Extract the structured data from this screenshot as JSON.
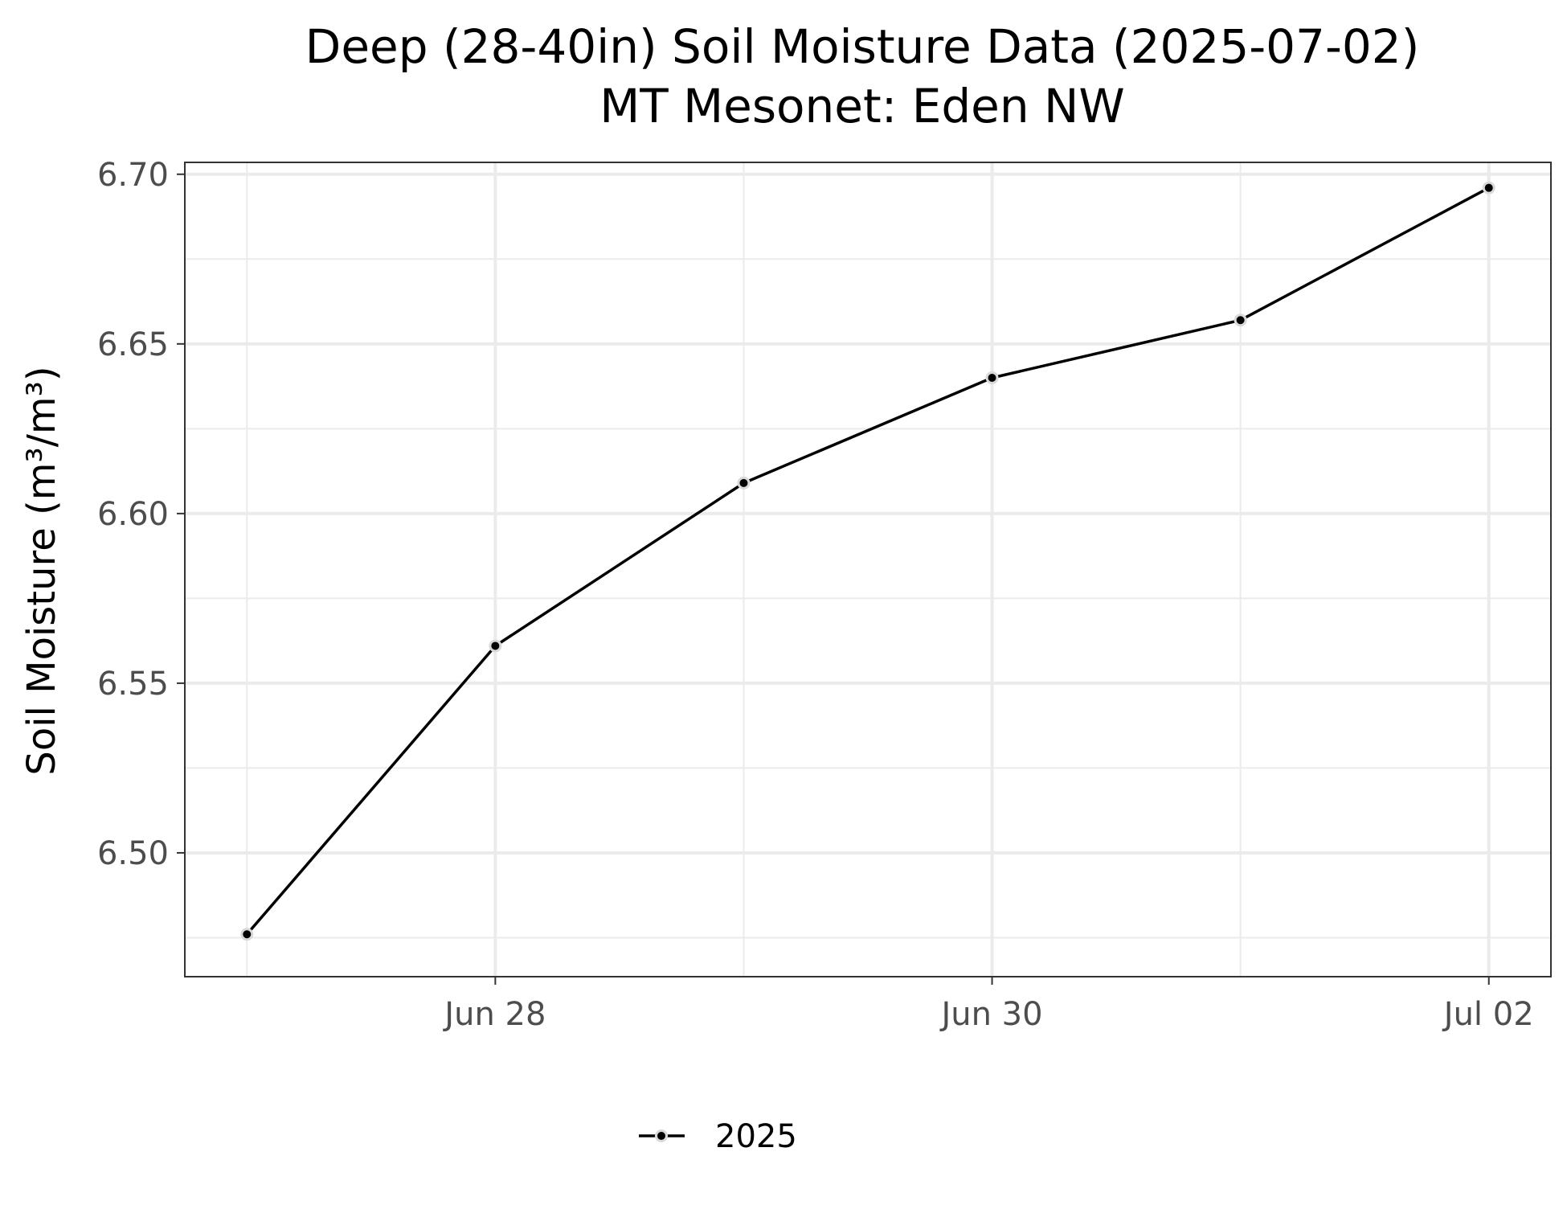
{
  "chart_data": {
    "type": "line",
    "title": "Deep (28-40in) Soil Moisture Data (2025-07-02)",
    "subtitle": "MT Mesonet: Eden NW",
    "xlabel": "",
    "ylabel": "Soil Moisture (m³/m³)",
    "x_ticks": [
      "Jun 28",
      "Jun 30",
      "Jul 02"
    ],
    "x_tick_dates": [
      "2025-06-28",
      "2025-06-30",
      "2025-07-02"
    ],
    "y_ticks": [
      "6.50",
      "6.55",
      "6.60",
      "6.65",
      "6.70"
    ],
    "x": [
      "2025-06-27",
      "2025-06-28",
      "2025-06-29",
      "2025-06-30",
      "2025-07-01",
      "2025-07-02"
    ],
    "series": [
      {
        "name": "2025",
        "values": [
          6.476,
          6.561,
          6.609,
          6.64,
          6.657,
          6.696
        ]
      }
    ],
    "xlim": [
      "2025-06-26T18:00",
      "2025-07-02T06:00"
    ],
    "ylim": [
      6.4635,
      6.7035
    ],
    "grid": true,
    "legend_position": "bottom",
    "colors": {
      "line": "#000000",
      "point_outline": "#d9d9d9",
      "grid": "#ebebeb",
      "panel_border": "#333333"
    }
  }
}
